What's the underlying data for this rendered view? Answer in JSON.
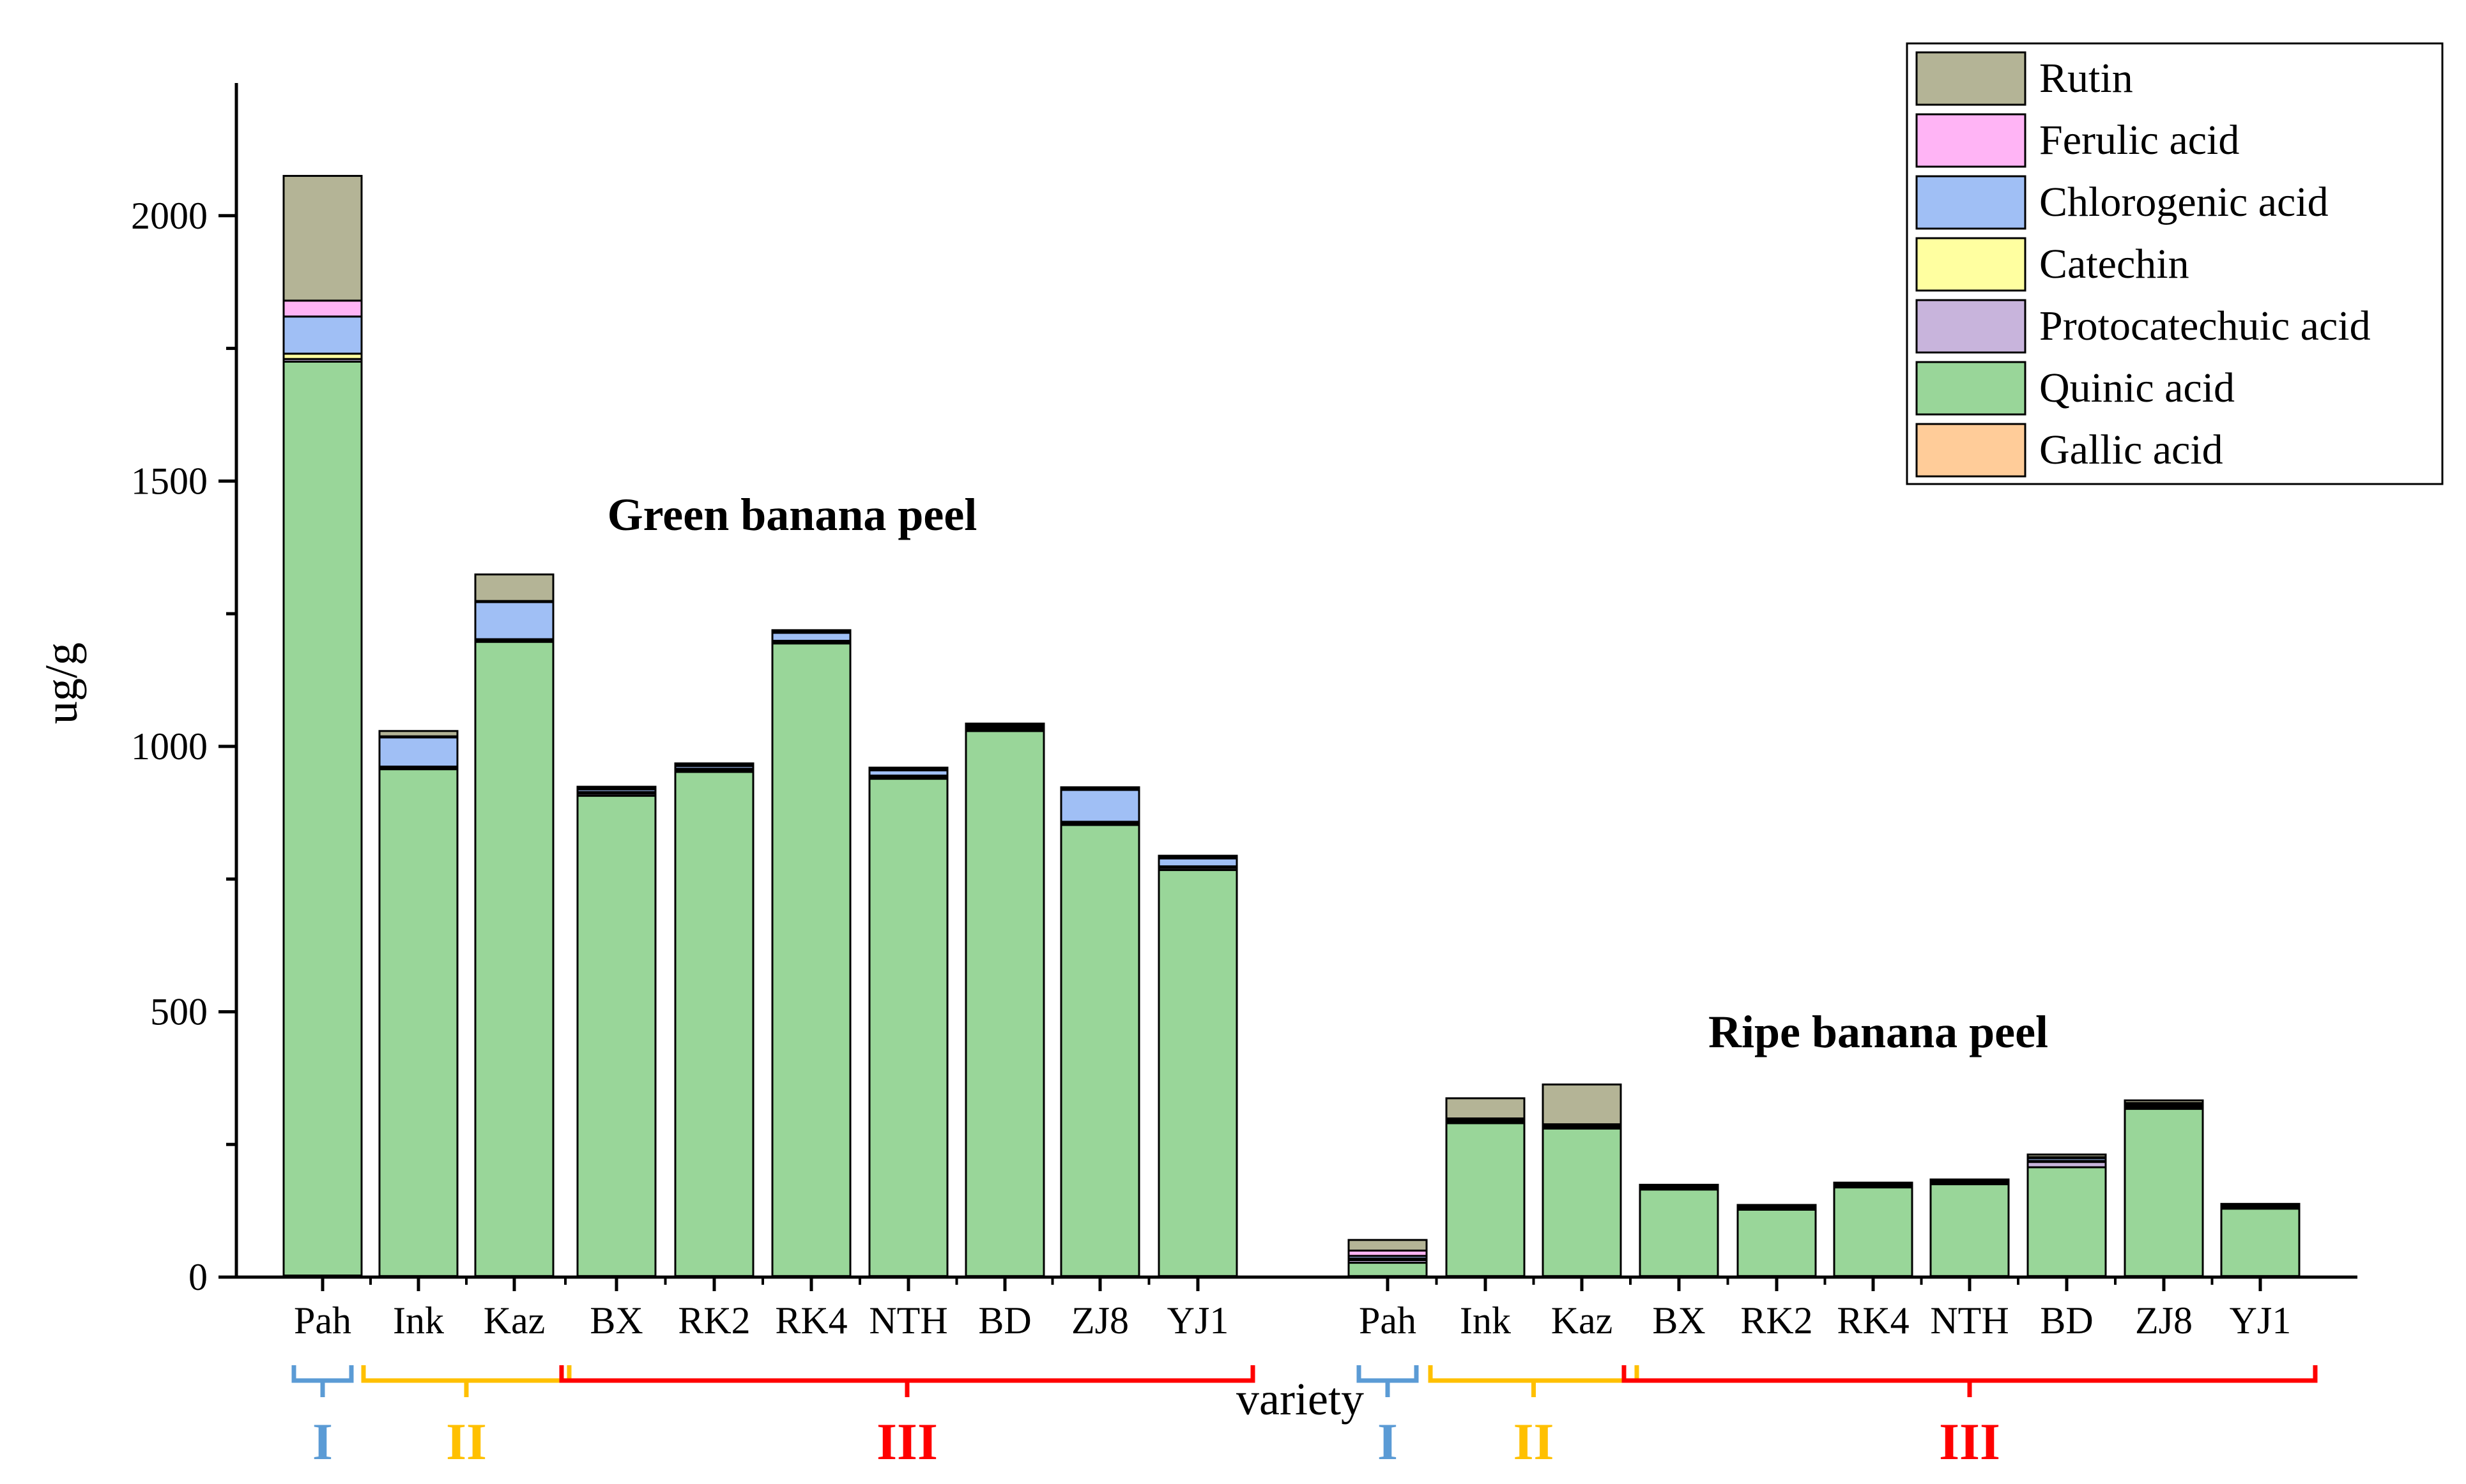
{
  "chart_data": {
    "type": "bar",
    "stacked": true,
    "ylabel": "ug/g",
    "xlabel": "variety",
    "ylim": [
      0,
      2250
    ],
    "yticks": [
      0,
      500,
      1000,
      1500,
      2000
    ],
    "legend_position": "top-right",
    "series": [
      {
        "key": "gallic",
        "name": "Gallic acid",
        "color": "#FFCC99"
      },
      {
        "key": "quinic",
        "name": "Quinic acid",
        "color": "#99D699"
      },
      {
        "key": "proto",
        "name": "Protocatechuic acid",
        "color": "#C8B4DC"
      },
      {
        "key": "catechin",
        "name": "Catechin",
        "color": "#FFFFA0"
      },
      {
        "key": "chloro",
        "name": "Chlorogenic acid",
        "color": "#A0BFF5"
      },
      {
        "key": "ferulic",
        "name": "Ferulic acid",
        "color": "#FFB4F5"
      },
      {
        "key": "rutin",
        "name": "Rutin",
        "color": "#B4B496"
      }
    ],
    "panels": [
      {
        "title": "Green banana peel",
        "categories": [
          "Pah",
          "Ink",
          "Kaz",
          "BX",
          "RK2",
          "RK4",
          "NTH",
          "BD",
          "ZJ8",
          "YJ1"
        ],
        "values": {
          "gallic": [
            3,
            2,
            2,
            2,
            2,
            2,
            2,
            2,
            2,
            2
          ],
          "quinic": [
            1722,
            955,
            1195,
            905,
            950,
            1192,
            937,
            1027,
            850,
            765
          ],
          "proto": [
            5,
            3,
            3,
            4,
            3,
            3,
            3,
            3,
            3,
            4
          ],
          "catechin": [
            10,
            2,
            2,
            3,
            3,
            2,
            3,
            3,
            3,
            3
          ],
          "chloro": [
            70,
            55,
            70,
            5,
            5,
            15,
            10,
            3,
            60,
            15
          ],
          "ferulic": [
            30,
            2,
            2,
            2,
            2,
            2,
            2,
            2,
            2,
            2
          ],
          "rutin": [
            235,
            10,
            50,
            3,
            3,
            3,
            3,
            3,
            3,
            3
          ]
        }
      },
      {
        "title": "Ripe banana peel",
        "categories": [
          "Pah",
          "Ink",
          "Kaz",
          "BX",
          "RK2",
          "RK4",
          "NTH",
          "BD",
          "ZJ8",
          "YJ1"
        ],
        "values": {
          "gallic": [
            2,
            2,
            2,
            2,
            2,
            2,
            2,
            2,
            2,
            2
          ],
          "quinic": [
            25,
            288,
            278,
            163,
            125,
            167,
            173,
            205,
            315,
            127
          ],
          "proto": [
            5,
            3,
            2,
            2,
            2,
            2,
            2,
            10,
            3,
            2
          ],
          "catechin": [
            3,
            2,
            2,
            1,
            1,
            1,
            1,
            2,
            3,
            1
          ],
          "chloro": [
            5,
            2,
            2,
            2,
            2,
            2,
            2,
            5,
            3,
            2
          ],
          "ferulic": [
            10,
            2,
            2,
            1,
            1,
            1,
            1,
            2,
            2,
            1
          ],
          "rutin": [
            20,
            38,
            75,
            3,
            3,
            3,
            3,
            5,
            5,
            3
          ]
        }
      }
    ],
    "groups": [
      {
        "label": "I",
        "color": "#5B9BD5",
        "start": "Pah",
        "end": "Pah"
      },
      {
        "label": "II",
        "color": "#FFC000",
        "start": "Ink",
        "end": "Kaz"
      },
      {
        "label": "III",
        "color": "#FF0000",
        "start": "BX",
        "end": "YJ1"
      }
    ]
  }
}
